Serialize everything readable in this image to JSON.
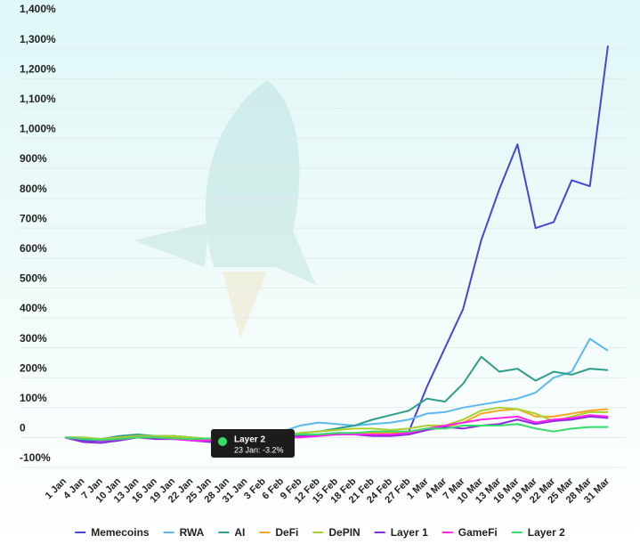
{
  "chart_data": {
    "type": "line",
    "categories": [
      "1 Jan",
      "4 Jan",
      "7 Jan",
      "10 Jan",
      "13 Jan",
      "16 Jan",
      "19 Jan",
      "22 Jan",
      "25 Jan",
      "28 Jan",
      "31 Jan",
      "3 Feb",
      "6 Feb",
      "9 Feb",
      "12 Feb",
      "15 Feb",
      "18 Feb",
      "21 Feb",
      "24 Feb",
      "27 Feb",
      "1 Mar",
      "4 Mar",
      "7 Mar",
      "10 Mar",
      "13 Mar",
      "16 Mar",
      "19 Mar",
      "22 Mar",
      "25 Mar",
      "28 Mar",
      "31 Mar"
    ],
    "series": [
      {
        "name": "Memecoins",
        "color": "#4747d6",
        "values": [
          0,
          -10,
          -12,
          -5,
          5,
          0,
          5,
          0,
          -15,
          -10,
          -5,
          -5,
          0,
          5,
          10,
          15,
          15,
          10,
          10,
          20,
          170,
          300,
          430,
          660,
          830,
          980,
          700,
          720,
          860,
          840,
          1310
        ]
      },
      {
        "name": "RWA",
        "color": "#5bb8f0",
        "values": [
          0,
          -3,
          -5,
          0,
          5,
          5,
          5,
          0,
          -5,
          0,
          5,
          10,
          20,
          40,
          50,
          45,
          40,
          45,
          50,
          60,
          80,
          85,
          100,
          110,
          120,
          130,
          150,
          200,
          220,
          330,
          290
        ]
      },
      {
        "name": "AI",
        "color": "#2e9e8a",
        "values": [
          0,
          0,
          -5,
          5,
          10,
          5,
          5,
          0,
          -5,
          0,
          5,
          5,
          10,
          15,
          20,
          30,
          40,
          60,
          75,
          90,
          130,
          120,
          180,
          270,
          220,
          230,
          190,
          220,
          210,
          230,
          225
        ]
      },
      {
        "name": "DeFi",
        "color": "#f5a623",
        "values": [
          0,
          -5,
          -5,
          0,
          5,
          0,
          0,
          -5,
          -10,
          -5,
          -5,
          0,
          0,
          5,
          10,
          10,
          15,
          15,
          15,
          20,
          30,
          35,
          50,
          80,
          90,
          95,
          70,
          70,
          80,
          90,
          95
        ]
      },
      {
        "name": "DePIN",
        "color": "#a8d130",
        "values": [
          0,
          0,
          -5,
          0,
          5,
          5,
          5,
          0,
          -5,
          0,
          5,
          10,
          10,
          15,
          20,
          25,
          30,
          30,
          25,
          30,
          40,
          40,
          60,
          90,
          100,
          95,
          80,
          55,
          70,
          85,
          85
        ]
      },
      {
        "name": "Layer 1",
        "color": "#8a2be2",
        "values": [
          0,
          -15,
          -18,
          -10,
          0,
          -5,
          -5,
          -10,
          -15,
          -15,
          -10,
          -10,
          0,
          5,
          10,
          10,
          10,
          5,
          5,
          10,
          25,
          35,
          30,
          40,
          45,
          60,
          45,
          55,
          60,
          70,
          65
        ]
      },
      {
        "name": "GameFi",
        "color": "#ff22ee",
        "values": [
          0,
          -5,
          -10,
          -5,
          0,
          0,
          -5,
          -10,
          -10,
          -5,
          -5,
          -5,
          0,
          0,
          5,
          10,
          10,
          10,
          10,
          15,
          30,
          40,
          50,
          60,
          65,
          70,
          50,
          60,
          65,
          75,
          70
        ]
      },
      {
        "name": "Layer 2",
        "color": "#33dd66",
        "values": [
          0,
          -5,
          -8,
          -5,
          0,
          0,
          -3,
          -5,
          -3,
          0,
          0,
          5,
          10,
          10,
          10,
          15,
          15,
          20,
          20,
          20,
          30,
          30,
          40,
          40,
          40,
          45,
          30,
          20,
          30,
          35,
          35
        ]
      }
    ],
    "ylim": [
      -100,
      1400
    ],
    "yticks": [
      {
        "value": -100,
        "label": "-100%"
      },
      0,
      {
        "value": 100,
        "label": "100%"
      },
      {
        "value": 200,
        "label": "200%"
      },
      {
        "value": 300,
        "label": "300%"
      },
      {
        "value": 400,
        "label": "400%"
      },
      {
        "value": 500,
        "label": "500%"
      },
      {
        "value": 600,
        "label": "600%"
      },
      {
        "value": 700,
        "label": "700%"
      },
      {
        "value": 800,
        "label": "800%"
      },
      {
        "value": 900,
        "label": "900%"
      },
      {
        "value": 1000,
        "label": "1,000%"
      },
      {
        "value": 1100,
        "label": "1,100%"
      },
      {
        "value": 1200,
        "label": "1,200%"
      },
      {
        "value": 1300,
        "label": "1,300%"
      },
      {
        "value": 1400,
        "label": "1,400%"
      }
    ],
    "grid": true,
    "legend": "bottom",
    "tooltip": {
      "title": "Layer 2",
      "text": "23 Jan: -3.2%"
    }
  }
}
